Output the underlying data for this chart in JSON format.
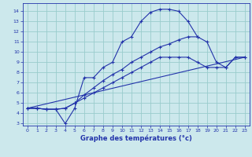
{
  "title": "Graphe des températures (°c)",
  "bg_color": "#cce8ec",
  "grid_color": "#99cccc",
  "line_color": "#2233aa",
  "xlim": [
    -0.5,
    23.5
  ],
  "ylim": [
    2.8,
    14.8
  ],
  "xticks": [
    0,
    1,
    2,
    3,
    4,
    5,
    6,
    7,
    8,
    9,
    10,
    11,
    12,
    13,
    14,
    15,
    16,
    17,
    18,
    19,
    20,
    21,
    22,
    23
  ],
  "yticks": [
    3,
    4,
    5,
    6,
    7,
    8,
    9,
    10,
    11,
    12,
    13,
    14
  ],
  "series1_x": [
    0,
    1,
    2,
    3,
    4,
    5,
    6,
    7,
    8,
    9,
    10,
    11,
    12,
    13,
    14,
    15,
    16,
    17,
    18
  ],
  "series1_y": [
    4.5,
    4.5,
    4.4,
    4.4,
    3.0,
    4.5,
    7.5,
    7.5,
    8.5,
    9.0,
    11.0,
    11.5,
    13.0,
    13.9,
    14.2,
    14.2,
    14.0,
    13.0,
    11.5
  ],
  "series2_x": [
    0,
    1,
    2,
    3,
    4,
    5,
    6,
    7,
    8,
    9,
    10,
    11,
    12,
    13,
    14,
    15,
    16,
    17,
    18,
    19,
    20,
    21,
    22,
    23
  ],
  "series2_y": [
    4.5,
    4.5,
    4.4,
    4.4,
    4.5,
    5.0,
    5.5,
    6.0,
    6.5,
    7.0,
    7.5,
    8.0,
    8.5,
    9.0,
    9.5,
    9.5,
    9.5,
    9.5,
    9.0,
    8.5,
    8.5,
    8.5,
    9.5,
    9.5
  ],
  "series3_x": [
    0,
    1,
    2,
    3,
    4,
    5,
    6,
    7,
    8,
    9,
    10,
    11,
    12,
    13,
    14,
    15,
    16,
    17,
    18,
    19,
    20,
    21,
    22,
    23
  ],
  "series3_y": [
    4.5,
    4.5,
    4.4,
    4.4,
    4.5,
    5.0,
    5.8,
    6.5,
    7.2,
    7.8,
    8.3,
    9.0,
    9.5,
    10.0,
    10.5,
    10.8,
    11.2,
    11.5,
    11.5,
    11.0,
    9.0,
    8.5,
    9.5,
    9.5
  ],
  "series4_x": [
    0,
    23
  ],
  "series4_y": [
    4.5,
    9.5
  ]
}
